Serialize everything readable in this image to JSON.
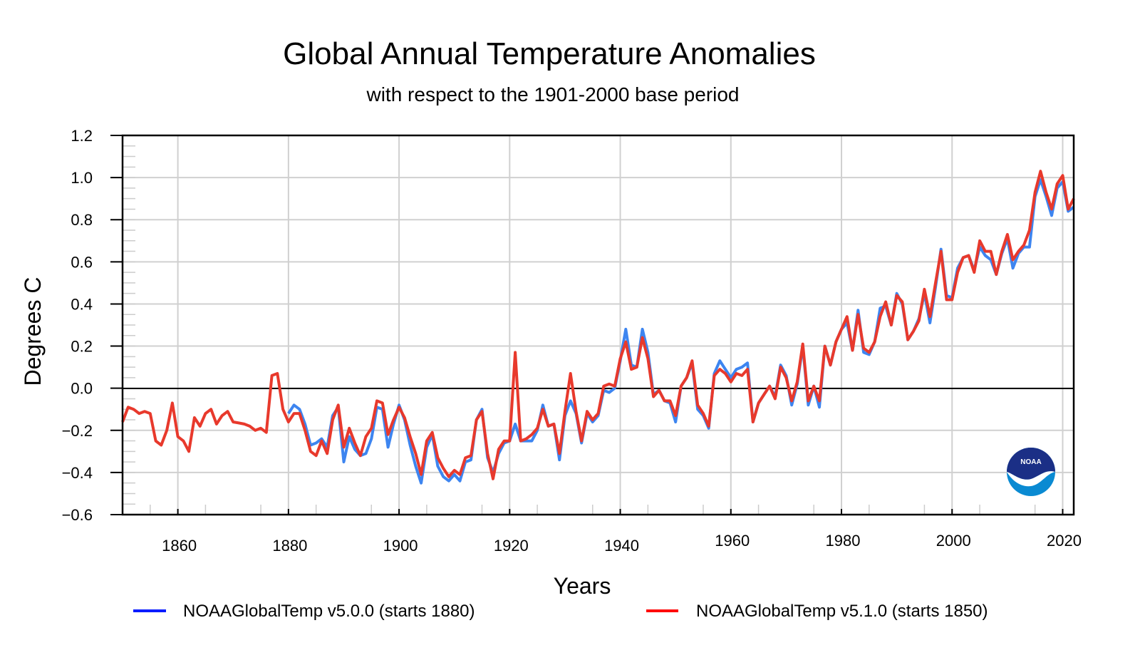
{
  "chart_data": {
    "type": "line",
    "title": "Global Annual Temperature Anomalies",
    "subtitle": "with respect to the 1901-2000  base period",
    "xlabel": "Years",
    "ylabel": "Degrees C",
    "xlim": [
      1850,
      2022
    ],
    "ylim": [
      -0.6,
      1.2
    ],
    "x_ticks": [
      1860,
      1880,
      1900,
      1920,
      1940,
      1960,
      1980,
      2000,
      2020
    ],
    "y_ticks": [
      "−0.6",
      "−0.4",
      "−0.2",
      "0.0",
      "0.2",
      "0.4",
      "0.6",
      "0.8",
      "1.0",
      "1.2"
    ],
    "grid": true,
    "legend_position": "bottom",
    "series": [
      {
        "name": "NOAAGlobalTemp v5.0.0 (starts 1880)",
        "color": "#3d85f0",
        "legend_color": "#0a1cff",
        "x_start": 1880,
        "values": [
          -0.12,
          -0.08,
          -0.1,
          -0.17,
          -0.27,
          -0.26,
          -0.24,
          -0.28,
          -0.13,
          -0.09,
          -0.35,
          -0.23,
          -0.29,
          -0.32,
          -0.31,
          -0.24,
          -0.09,
          -0.1,
          -0.28,
          -0.17,
          -0.08,
          -0.15,
          -0.27,
          -0.37,
          -0.45,
          -0.28,
          -0.22,
          -0.37,
          -0.42,
          -0.44,
          -0.41,
          -0.44,
          -0.35,
          -0.34,
          -0.15,
          -0.1,
          -0.33,
          -0.4,
          -0.31,
          -0.26,
          -0.25,
          -0.17,
          -0.25,
          -0.25,
          -0.25,
          -0.2,
          -0.08,
          -0.18,
          -0.17,
          -0.34,
          -0.13,
          -0.06,
          -0.12,
          -0.26,
          -0.12,
          -0.16,
          -0.13,
          -0.01,
          -0.02,
          0.0,
          0.13,
          0.28,
          0.11,
          0.1,
          0.28,
          0.17,
          -0.03,
          -0.01,
          -0.06,
          -0.07,
          -0.16,
          0.01,
          0.05,
          0.12,
          -0.1,
          -0.13,
          -0.19,
          0.07,
          0.13,
          0.09,
          0.05,
          0.09,
          0.1,
          0.12,
          -0.16,
          -0.07,
          -0.03,
          0.01,
          -0.04,
          0.11,
          0.06,
          -0.08,
          0.02,
          0.2,
          -0.08,
          0.01,
          -0.09,
          0.2,
          0.11,
          0.22,
          0.28,
          0.31,
          0.18,
          0.37,
          0.17,
          0.16,
          0.22,
          0.38,
          0.39,
          0.3,
          0.45,
          0.4,
          0.23,
          0.27,
          0.33,
          0.45,
          0.31,
          0.48,
          0.66,
          0.44,
          0.43,
          0.57,
          0.62,
          0.63,
          0.56,
          0.67,
          0.63,
          0.61,
          0.54,
          0.64,
          0.71,
          0.57,
          0.64,
          0.67,
          0.67,
          0.91,
          0.99,
          0.91,
          0.82,
          0.95,
          0.98,
          0.84,
          0.86
        ]
      },
      {
        "name": "NOAAGlobalTemp v5.1.0 (starts 1850)",
        "color": "#e8392c",
        "legend_color": "#ff0a0a",
        "x_start": 1850,
        "values": [
          -0.16,
          -0.09,
          -0.1,
          -0.12,
          -0.11,
          -0.12,
          -0.25,
          -0.27,
          -0.2,
          -0.07,
          -0.23,
          -0.25,
          -0.3,
          -0.14,
          -0.18,
          -0.12,
          -0.1,
          -0.17,
          -0.13,
          -0.11,
          -0.16,
          -0.165,
          -0.17,
          -0.18,
          -0.2,
          -0.19,
          -0.21,
          0.06,
          0.07,
          -0.1,
          -0.16,
          -0.12,
          -0.12,
          -0.2,
          -0.3,
          -0.32,
          -0.25,
          -0.31,
          -0.15,
          -0.08,
          -0.28,
          -0.19,
          -0.26,
          -0.32,
          -0.23,
          -0.19,
          -0.06,
          -0.07,
          -0.22,
          -0.15,
          -0.09,
          -0.14,
          -0.23,
          -0.31,
          -0.41,
          -0.25,
          -0.21,
          -0.33,
          -0.38,
          -0.42,
          -0.39,
          -0.41,
          -0.33,
          -0.32,
          -0.15,
          -0.11,
          -0.31,
          -0.43,
          -0.29,
          -0.25,
          -0.25,
          0.17,
          -0.25,
          -0.24,
          -0.22,
          -0.19,
          -0.1,
          -0.18,
          -0.17,
          -0.31,
          -0.11,
          0.07,
          -0.11,
          -0.25,
          -0.11,
          -0.15,
          -0.12,
          0.01,
          0.02,
          0.01,
          0.14,
          0.22,
          0.09,
          0.1,
          0.24,
          0.14,
          -0.04,
          -0.01,
          -0.06,
          -0.06,
          -0.13,
          0.01,
          0.05,
          0.13,
          -0.08,
          -0.12,
          -0.18,
          0.06,
          0.09,
          0.07,
          0.03,
          0.07,
          0.06,
          0.09,
          -0.16,
          -0.07,
          -0.03,
          0.01,
          -0.05,
          0.1,
          0.05,
          -0.06,
          0.03,
          0.21,
          -0.06,
          0.01,
          -0.06,
          0.2,
          0.11,
          0.22,
          0.28,
          0.34,
          0.18,
          0.35,
          0.19,
          0.17,
          0.22,
          0.34,
          0.41,
          0.3,
          0.44,
          0.41,
          0.23,
          0.27,
          0.32,
          0.47,
          0.34,
          0.5,
          0.65,
          0.42,
          0.42,
          0.55,
          0.62,
          0.63,
          0.55,
          0.7,
          0.65,
          0.65,
          0.54,
          0.65,
          0.73,
          0.61,
          0.65,
          0.68,
          0.75,
          0.93,
          1.03,
          0.93,
          0.85,
          0.97,
          1.01,
          0.85,
          0.9
        ]
      }
    ]
  },
  "logo": {
    "text": "NOAA",
    "colors": {
      "top": "#1b2f86",
      "bottom": "#0a8ad2"
    }
  }
}
